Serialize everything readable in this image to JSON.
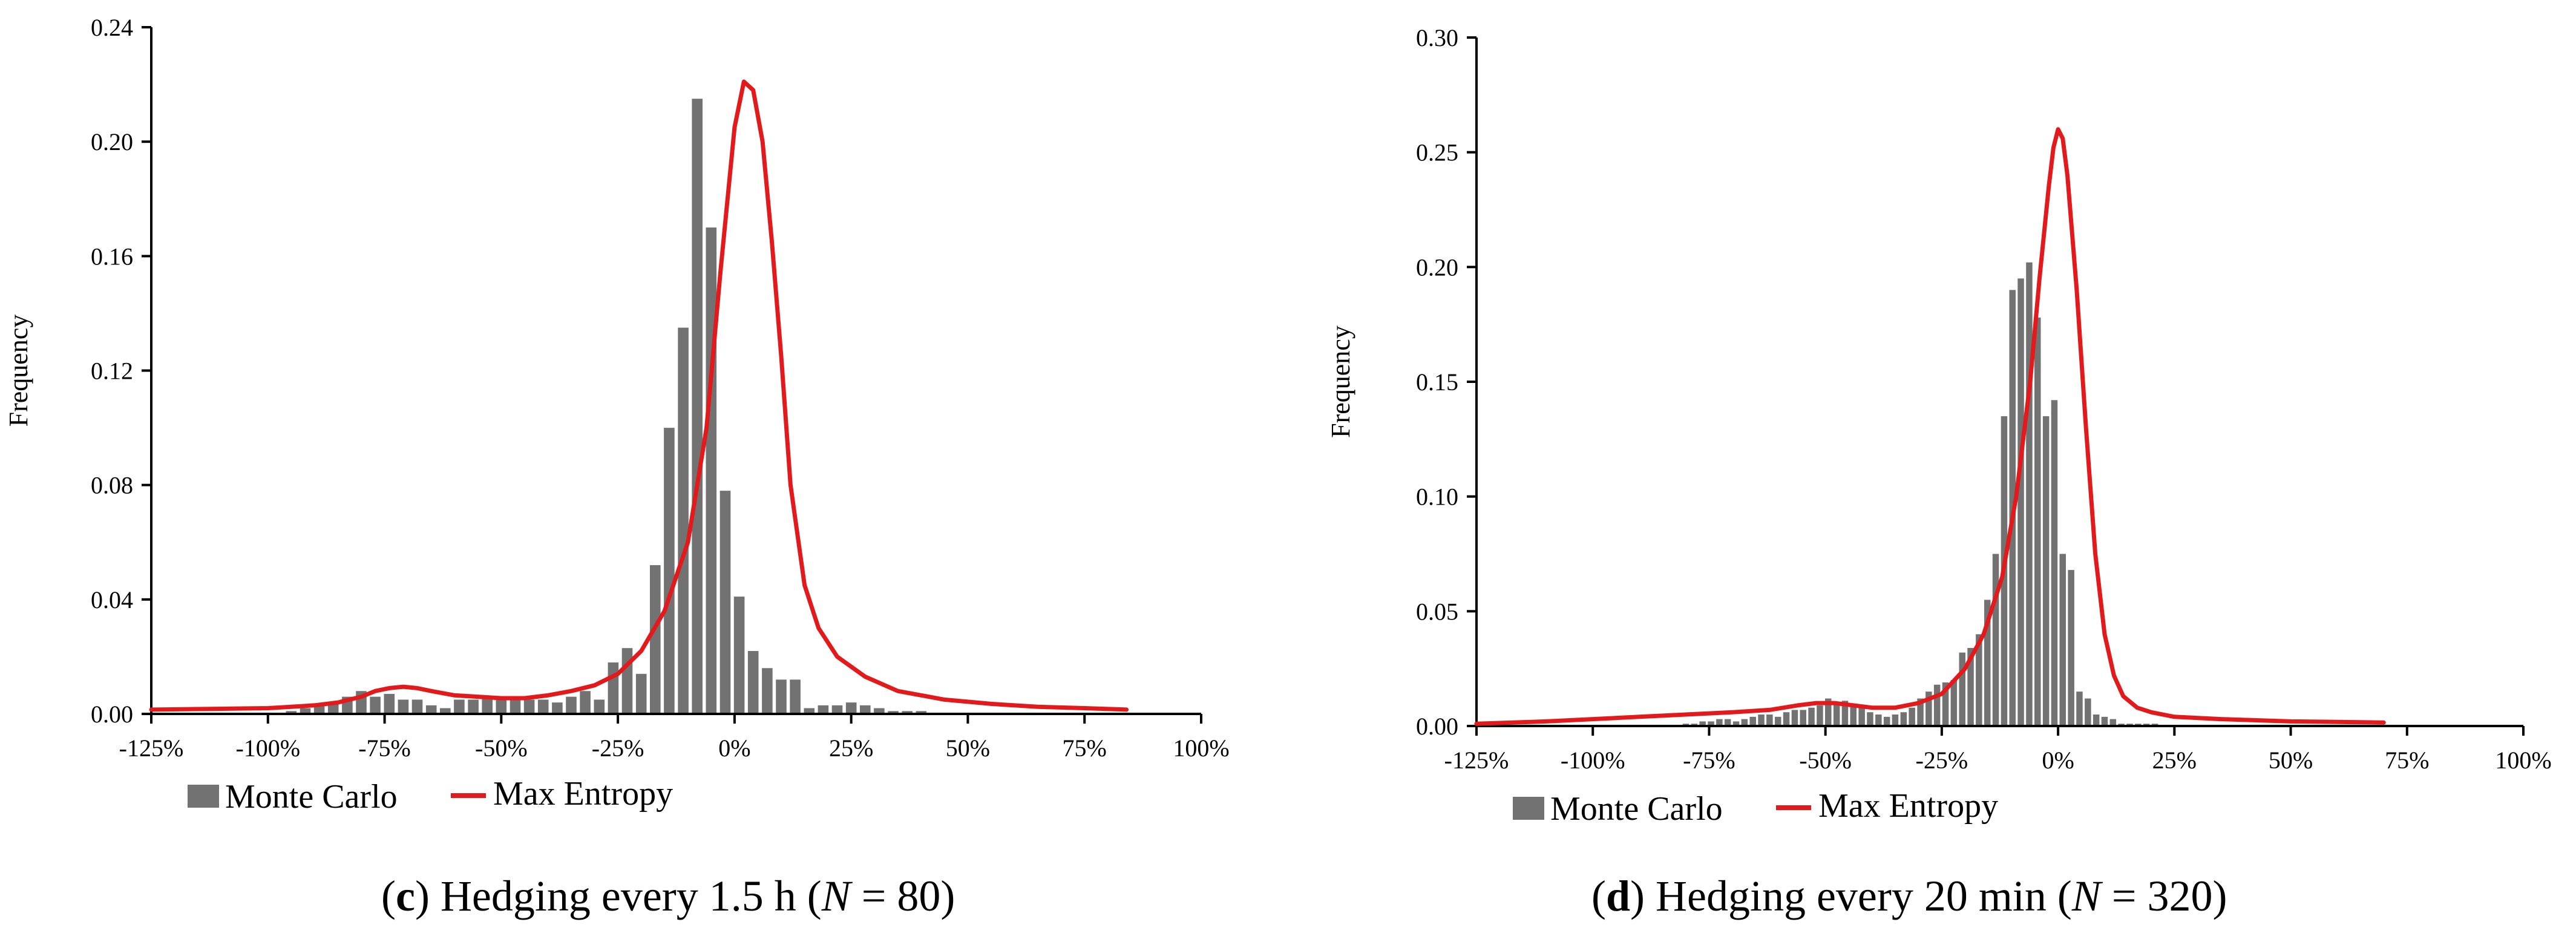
{
  "chart_data": [
    {
      "type": "bar",
      "subplot_letter": "c",
      "caption_text": "Hedging every 1.5 h (",
      "caption_var": "N",
      "caption_eq": " = 80)",
      "ylabel": "Frequency",
      "xlabel": "",
      "xlim": [
        -125,
        100
      ],
      "ylim": [
        0,
        0.24
      ],
      "yticks": [
        "0.00",
        "0.04",
        "0.08",
        "0.12",
        "0.16",
        "0.20",
        "0.24"
      ],
      "yticks_values": [
        0,
        0.04,
        0.08,
        0.12,
        0.16,
        0.2,
        0.24
      ],
      "xticks": [
        "-125%",
        "-100%",
        "-75%",
        "-50%",
        "-25%",
        "0%",
        "25%",
        "50%",
        "75%",
        "100%"
      ],
      "xticks_values": [
        -125,
        -100,
        -75,
        -50,
        -25,
        0,
        25,
        50,
        75,
        100
      ],
      "legend": {
        "position": "bottom-left",
        "bar_label": "Monte Carlo",
        "line_label": "Max Entropy"
      },
      "colors": {
        "bars": "#727272",
        "line": "#e31a1c",
        "axes": "#000000"
      },
      "bin_width": 3,
      "bar_centers": [
        -95,
        -92,
        -89,
        -86,
        -83,
        -80,
        -77,
        -74,
        -71,
        -68,
        -65,
        -62,
        -59,
        -56,
        -53,
        -50,
        -47,
        -44,
        -41,
        -38,
        -35,
        -32,
        -29,
        -26,
        -23,
        -20,
        -17,
        -14,
        -11,
        -8,
        -5,
        -2,
        1,
        4,
        7,
        10,
        13,
        16,
        19,
        22,
        25,
        28,
        31,
        34,
        37,
        40,
        43,
        46
      ],
      "bar_values": [
        0.001,
        0.002,
        0.003,
        0.004,
        0.006,
        0.008,
        0.006,
        0.007,
        0.005,
        0.005,
        0.003,
        0.002,
        0.005,
        0.005,
        0.006,
        0.005,
        0.006,
        0.005,
        0.005,
        0.004,
        0.006,
        0.008,
        0.005,
        0.018,
        0.023,
        0.014,
        0.052,
        0.1,
        0.135,
        0.215,
        0.17,
        0.078,
        0.041,
        0.022,
        0.016,
        0.012,
        0.012,
        0.002,
        0.003,
        0.003,
        0.004,
        0.003,
        0.002,
        0.001,
        0.001,
        0.001,
        0.0,
        0.0
      ],
      "line_x": [
        -125,
        -110,
        -100,
        -95,
        -90,
        -85,
        -80,
        -77,
        -74,
        -71,
        -68,
        -65,
        -60,
        -55,
        -50,
        -45,
        -40,
        -35,
        -30,
        -25,
        -20,
        -15,
        -10,
        -6,
        -3,
        0,
        2,
        4,
        6,
        8,
        10,
        12,
        15,
        18,
        22,
        28,
        35,
        45,
        55,
        65,
        75,
        84
      ],
      "line_y": [
        0.0015,
        0.0018,
        0.002,
        0.0025,
        0.003,
        0.004,
        0.006,
        0.008,
        0.009,
        0.0095,
        0.009,
        0.008,
        0.0065,
        0.006,
        0.0055,
        0.0055,
        0.0065,
        0.008,
        0.01,
        0.014,
        0.022,
        0.036,
        0.06,
        0.1,
        0.155,
        0.205,
        0.221,
        0.218,
        0.2,
        0.165,
        0.125,
        0.08,
        0.045,
        0.03,
        0.02,
        0.013,
        0.008,
        0.005,
        0.0035,
        0.0025,
        0.002,
        0.0015
      ]
    },
    {
      "type": "bar",
      "subplot_letter": "d",
      "caption_text": "Hedging every 20 min (",
      "caption_var": "N",
      "caption_eq": " = 320)",
      "ylabel": "Frequency",
      "xlabel": "",
      "xlim": [
        -125,
        100
      ],
      "ylim": [
        0,
        0.3
      ],
      "yticks": [
        "0.00",
        "0.05",
        "0.10",
        "0.15",
        "0.20",
        "0.25",
        "0.30"
      ],
      "yticks_values": [
        0,
        0.05,
        0.1,
        0.15,
        0.2,
        0.25,
        0.3
      ],
      "xticks": [
        "-125%",
        "-100%",
        "-75%",
        "-50%",
        "-25%",
        "0%",
        "25%",
        "50%",
        "75%",
        "100%"
      ],
      "xticks_values": [
        -125,
        -100,
        -75,
        -50,
        -25,
        0,
        25,
        50,
        75,
        100
      ],
      "legend": {
        "position": "bottom-left",
        "bar_label": "Monte Carlo",
        "line_label": "Max Entropy"
      },
      "colors": {
        "bars": "#727272",
        "line": "#e31a1c",
        "axes": "#000000"
      },
      "bin_width": 1.8,
      "bar_centers": [
        -80,
        -78.2,
        -76.4,
        -74.6,
        -72.8,
        -71,
        -69.2,
        -67.4,
        -65.6,
        -63.8,
        -62,
        -60.2,
        -58.4,
        -56.6,
        -54.8,
        -53,
        -51.2,
        -49.4,
        -47.6,
        -45.8,
        -44,
        -42.2,
        -40.4,
        -38.6,
        -36.8,
        -35,
        -33.2,
        -31.4,
        -29.6,
        -27.8,
        -26,
        -24.2,
        -22.4,
        -20.6,
        -18.8,
        -17,
        -15.2,
        -13.4,
        -11.6,
        -9.8,
        -8,
        -6.2,
        -4.4,
        -2.6,
        -0.8,
        1,
        2.8,
        4.6,
        6.4,
        8.2,
        10,
        11.8,
        13.6,
        15.4,
        17.2,
        19,
        20.8,
        22.6,
        24.4
      ],
      "bar_values": [
        0.001,
        0.001,
        0.002,
        0.002,
        0.003,
        0.003,
        0.002,
        0.003,
        0.004,
        0.005,
        0.005,
        0.004,
        0.006,
        0.007,
        0.007,
        0.008,
        0.009,
        0.012,
        0.01,
        0.011,
        0.009,
        0.008,
        0.006,
        0.005,
        0.004,
        0.005,
        0.006,
        0.008,
        0.012,
        0.015,
        0.018,
        0.019,
        0.02,
        0.032,
        0.034,
        0.04,
        0.055,
        0.075,
        0.135,
        0.19,
        0.195,
        0.202,
        0.178,
        0.135,
        0.142,
        0.075,
        0.068,
        0.015,
        0.012,
        0.005,
        0.004,
        0.003,
        0.001,
        0.001,
        0.001,
        0.001,
        0.001,
        0.0,
        0.0
      ],
      "line_x": [
        -125,
        -110,
        -100,
        -90,
        -80,
        -70,
        -62,
        -56,
        -52,
        -48,
        -44,
        -40,
        -35,
        -30,
        -25,
        -20,
        -16,
        -12,
        -9,
        -6,
        -4,
        -2,
        -1,
        0,
        1,
        2,
        4,
        6,
        8,
        10,
        12,
        14,
        17,
        20,
        25,
        35,
        50,
        60,
        70
      ],
      "line_y": [
        0.001,
        0.002,
        0.003,
        0.004,
        0.005,
        0.006,
        0.007,
        0.009,
        0.01,
        0.01,
        0.009,
        0.008,
        0.008,
        0.01,
        0.014,
        0.025,
        0.04,
        0.065,
        0.1,
        0.15,
        0.195,
        0.235,
        0.252,
        0.26,
        0.256,
        0.24,
        0.19,
        0.13,
        0.075,
        0.04,
        0.022,
        0.013,
        0.008,
        0.006,
        0.004,
        0.003,
        0.002,
        0.0018,
        0.0015
      ]
    }
  ]
}
